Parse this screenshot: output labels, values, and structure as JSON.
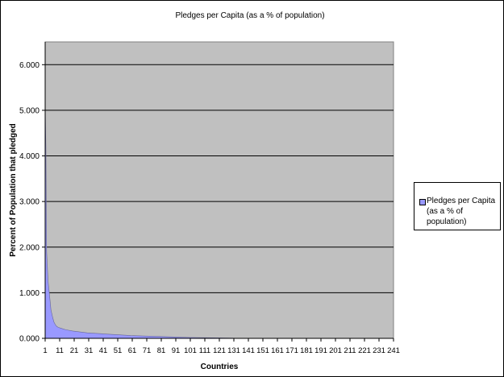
{
  "chart_data": {
    "type": "area",
    "title": "Pledges per Capita (as a % of population)",
    "xlabel": "Countries",
    "ylabel": "Percent of Population that pledged",
    "ylim": [
      0,
      6.5
    ],
    "xlim": [
      1,
      241
    ],
    "yticks": [
      "0.000",
      "1.000",
      "2.000",
      "3.000",
      "4.000",
      "5.000",
      "6.000"
    ],
    "xticks": [
      "1",
      "11",
      "21",
      "31",
      "41",
      "51",
      "61",
      "71",
      "81",
      "91",
      "101",
      "111",
      "121",
      "131",
      "141",
      "151",
      "161",
      "171",
      "181",
      "191",
      "201",
      "211",
      "221",
      "231",
      "241"
    ],
    "grid": true,
    "legend": "right",
    "colors": {
      "plot_bg": "#c0c0c0",
      "fill": "#9999ff",
      "stroke": "#666699"
    },
    "series": [
      {
        "name": "Pledges per Capita (as a % of population)",
        "x": [
          1,
          1.5,
          2,
          3,
          4,
          5,
          6,
          7,
          8,
          9,
          10,
          12,
          15,
          20,
          25,
          30,
          40,
          50,
          60,
          70,
          80,
          90,
          100,
          110,
          120,
          130,
          135
        ],
        "values": [
          5.15,
          4.2,
          1.9,
          1.25,
          0.95,
          0.62,
          0.48,
          0.36,
          0.3,
          0.26,
          0.24,
          0.22,
          0.19,
          0.16,
          0.14,
          0.12,
          0.1,
          0.08,
          0.06,
          0.05,
          0.04,
          0.03,
          0.02,
          0.015,
          0.01,
          0.005,
          0
        ]
      }
    ]
  }
}
